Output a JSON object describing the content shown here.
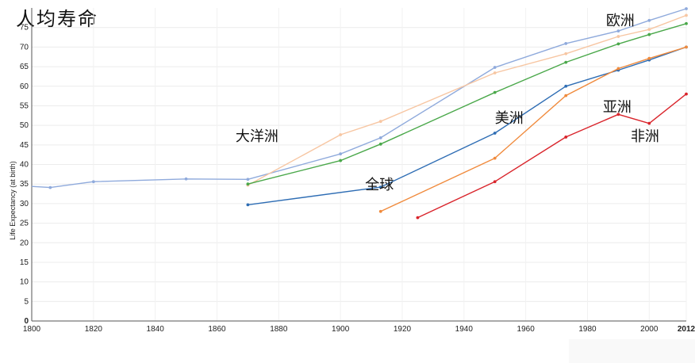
{
  "chart_data": {
    "type": "line",
    "title": "人均寿命",
    "ylabel": "Life Expectancy (at birth)",
    "xlabel": "",
    "xlim": [
      1800,
      2012
    ],
    "ylim": [
      0,
      80
    ],
    "grid": true,
    "x_ticks": [
      1800,
      1820,
      1840,
      1860,
      1880,
      1900,
      1920,
      1940,
      1960,
      1980,
      2000,
      2012
    ],
    "x_tick_labels": [
      "1800",
      "1820",
      "1840",
      "1860",
      "1880",
      "1900",
      "1920",
      "1940",
      "1960",
      "1980",
      "2000",
      "2012"
    ],
    "y_ticks": [
      0,
      5,
      10,
      15,
      20,
      25,
      30,
      35,
      40,
      45,
      50,
      55,
      60,
      65,
      70,
      75
    ],
    "y_tick_labels": [
      "0",
      "5",
      "10",
      "15",
      "20",
      "25",
      "30",
      "35",
      "40",
      "45",
      "50",
      "55",
      "60",
      "65",
      "70",
      "75"
    ],
    "series": [
      {
        "color": "#8faadc",
        "points": [
          [
            1800,
            34.4
          ],
          [
            1806,
            34.1
          ],
          [
            1820,
            35.6
          ],
          [
            1850,
            36.3
          ],
          [
            1870,
            36.2
          ],
          [
            1900,
            42.7
          ],
          [
            1913,
            46.8
          ],
          [
            1950,
            64.8
          ],
          [
            1973,
            70.9
          ],
          [
            1990,
            74.1
          ],
          [
            2000,
            76.8
          ],
          [
            2012,
            79.8
          ]
        ]
      },
      {
        "color": "#f7c6a2",
        "points": [
          [
            1870,
            34.7
          ],
          [
            1900,
            47.6
          ],
          [
            1913,
            51.0
          ],
          [
            1950,
            63.4
          ],
          [
            1973,
            68.3
          ],
          [
            1990,
            72.7
          ],
          [
            2000,
            74.5
          ],
          [
            2012,
            78.1
          ]
        ]
      },
      {
        "color": "#4aa84a",
        "points": [
          [
            1870,
            35.0
          ],
          [
            1900,
            41.0
          ],
          [
            1913,
            45.2
          ],
          [
            1950,
            58.4
          ],
          [
            1973,
            66.1
          ],
          [
            1990,
            70.8
          ],
          [
            2000,
            73.2
          ],
          [
            2012,
            76.0
          ]
        ]
      },
      {
        "color": "#2e6db4",
        "points": [
          [
            1870,
            29.7
          ],
          [
            1913,
            34.2
          ],
          [
            1950,
            48.0
          ],
          [
            1973,
            60.0
          ],
          [
            1990,
            64.1
          ],
          [
            2000,
            66.7
          ],
          [
            2012,
            70.0
          ]
        ]
      },
      {
        "color": "#f08a3c",
        "points": [
          [
            1913,
            28.0
          ],
          [
            1950,
            41.6
          ],
          [
            1973,
            57.6
          ],
          [
            1990,
            64.5
          ],
          [
            2000,
            67.1
          ],
          [
            2012,
            70.0
          ]
        ]
      },
      {
        "color": "#d9242b",
        "points": [
          [
            1925,
            26.4
          ],
          [
            1950,
            35.6
          ],
          [
            1973,
            47.0
          ],
          [
            1990,
            52.8
          ],
          [
            2000,
            50.5
          ],
          [
            2012,
            58.0
          ]
        ]
      }
    ],
    "annotations": [
      {
        "text": "欧洲",
        "x": 1986,
        "y": 75.5
      },
      {
        "text": "大洋洲",
        "x": 1866,
        "y": 46.0
      },
      {
        "text": "美洲",
        "x": 1950,
        "y": 50.6
      },
      {
        "text": "亚洲",
        "x": 1985,
        "y": 53.5
      },
      {
        "text": "全球",
        "x": 1908,
        "y": 33.6
      },
      {
        "text": "非洲",
        "x": 1994,
        "y": 46.0
      }
    ]
  }
}
